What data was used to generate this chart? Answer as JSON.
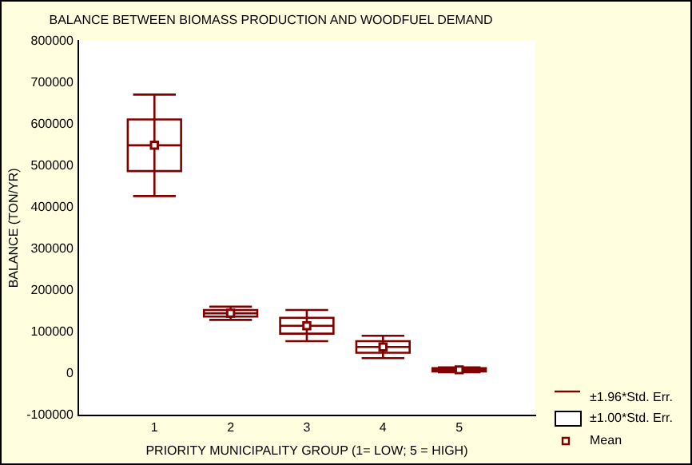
{
  "chart_data": {
    "type": "box",
    "title": "BALANCE BETWEEN BIOMASS PRODUCTION AND WOODFUEL DEMAND",
    "xlabel": "PRIORITY MUNICIPALITY GROUP (1= LOW; 5 = HIGH)",
    "ylabel": "BALANCE (TON/YR)",
    "x": [
      1,
      2,
      3,
      4,
      5
    ],
    "xlim": [
      0,
      6
    ],
    "xticks": [
      1,
      2,
      3,
      4,
      5
    ],
    "ylim": [
      -100000,
      800000
    ],
    "yticks": [
      -100000,
      0,
      100000,
      200000,
      300000,
      400000,
      500000,
      600000,
      700000,
      800000
    ],
    "series": [
      {
        "name": "±1.96*Std. Err.",
        "type": "box",
        "color": "#800000",
        "boxes": [
          {
            "low": 427000,
            "q1": 487000,
            "median": 549000,
            "q3": 611000,
            "high": 671000
          },
          {
            "low": 129000,
            "q1": 137000,
            "median": 145000,
            "q3": 153000,
            "high": 161000
          },
          {
            "low": 78000,
            "q1": 96000,
            "median": 115000,
            "q3": 134000,
            "high": 153000
          },
          {
            "low": 37000,
            "q1": 50000,
            "median": 64000,
            "q3": 78000,
            "high": 91000
          },
          {
            "low": 3000,
            "q1": 5000,
            "median": 9000,
            "q3": 13000,
            "high": 15000
          }
        ]
      },
      {
        "name": "Mean",
        "type": "scatter",
        "marker": "square",
        "color": "#800000",
        "x": [
          1,
          2,
          3,
          4,
          5
        ],
        "values": [
          549000,
          145000,
          115000,
          64000,
          9000
        ]
      }
    ],
    "annotations": [
      "±1.00*Std. Err."
    ],
    "legend": "bottom right",
    "grid": false
  }
}
